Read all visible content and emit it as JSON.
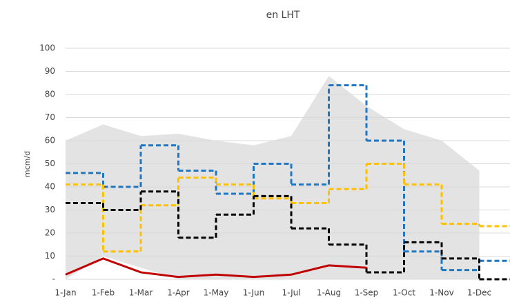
{
  "chart_data": {
    "type": "line",
    "title": "en LHT",
    "y_label": "mcm/d",
    "categories": [
      "1-Jan",
      "1-Feb",
      "1-Mar",
      "1-Apr",
      "1-May",
      "1-Jun",
      "1-Jul",
      "1-Aug",
      "1-Sep",
      "1-Oct",
      "1-Nov",
      "1-Dec"
    ],
    "ylim": [
      0,
      100
    ],
    "yticks": [
      {
        "value": 0,
        "label": "-"
      },
      10,
      20,
      30,
      40,
      50,
      60,
      70,
      80,
      90,
      100
    ],
    "grid": true,
    "range": {
      "color": "#e3e3e3",
      "upper": [
        60,
        67,
        62,
        63,
        60,
        58,
        62,
        88,
        75,
        65,
        60,
        47
      ],
      "lower": [
        0,
        10,
        5,
        0,
        0,
        0,
        0,
        0,
        0,
        0,
        0,
        0
      ]
    },
    "series": [
      {
        "style": "step",
        "color": "#1f77c4",
        "values": [
          46,
          40,
          58,
          47,
          37,
          50,
          41,
          84,
          60,
          12,
          4,
          8
        ]
      },
      {
        "style": "step",
        "color": "#ffc000",
        "values": [
          41,
          12,
          32,
          44,
          41,
          35,
          33,
          39,
          50,
          41,
          24,
          23
        ]
      },
      {
        "style": "step",
        "color": "#000000",
        "values": [
          33,
          30,
          38,
          18,
          28,
          36,
          22,
          15,
          3,
          16,
          9,
          0
        ]
      },
      {
        "style": "solid",
        "color": "#c00000",
        "values": [
          2,
          9,
          3,
          1,
          2,
          1,
          2,
          6,
          5,
          null,
          null,
          null
        ]
      }
    ]
  }
}
